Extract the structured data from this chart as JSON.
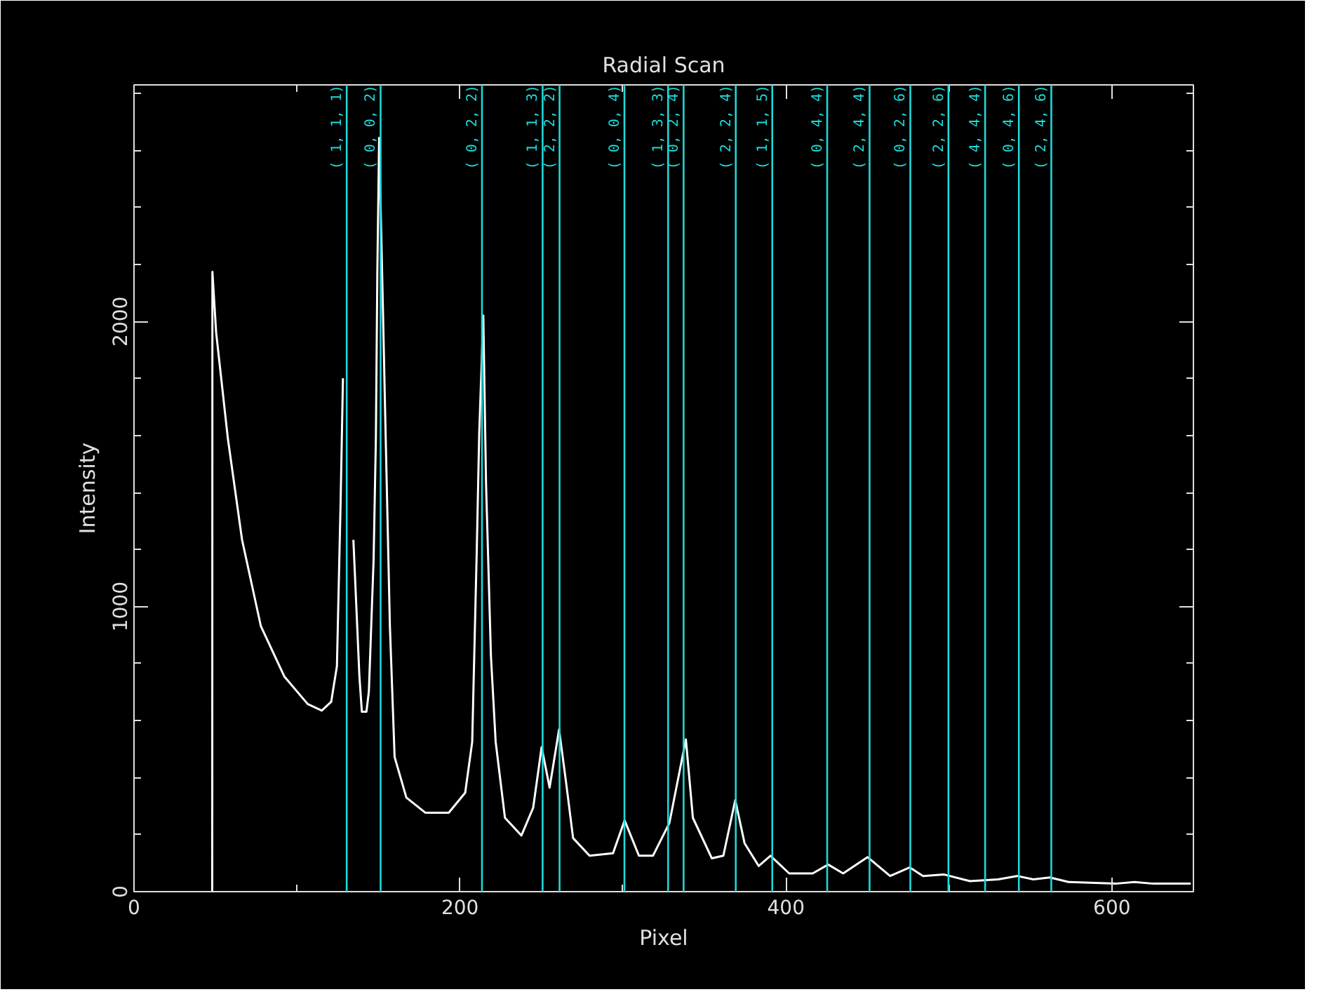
{
  "chart_data": {
    "type": "line",
    "title": "Radial Scan",
    "xlabel": "Pixel",
    "ylabel": "Intensity",
    "xlim": [
      0,
      650
    ],
    "ylim": [
      0,
      2830
    ],
    "xticks": [
      0,
      200,
      400,
      600
    ],
    "yticks": [
      0,
      1000,
      2000
    ],
    "grid": false,
    "marker": "none",
    "line_style": "solid",
    "series": [
      {
        "color": "#ffffff",
        "x": [
          48,
          48.1,
          50.4,
          57.6,
          66.3,
          77.8,
          92.2,
          106.6,
          115.2,
          121,
          124.5,
          126.8,
          128.2,
          129.8,
          132.5,
          134.6,
          138.3,
          139.8,
          142.6,
          144.1,
          147,
          148.4,
          149.3,
          150.4,
          152.7,
          154.1,
          157,
          159.9,
          167.1,
          178.7,
          193.1,
          203.2,
          207.5,
          210.3,
          211.8,
          214.3,
          216,
          219,
          221.9,
          227.6,
          237.7,
          244.9,
          250.1,
          255,
          260.8,
          265.1,
          269.4,
          279.5,
          293.9,
          301,
          309.8,
          318.4,
          328.5,
          338.6,
          342.9,
          354.5,
          361.6,
          368.9,
          374.6,
          383.3,
          390.5,
          402,
          416.4,
          425.9,
          435.1,
          450.1,
          463.9,
          476,
          484.1,
          497.1,
          512.9,
          530.2,
          541.8,
          551.8,
          561.9,
          573.4,
          602.2,
          613.8,
          625.3,
          648.4
        ],
        "values": [
          0,
          2174,
          1961,
          1589,
          1234,
          932,
          755,
          658,
          635,
          666,
          791,
          1376,
          1801,
          null,
          null,
          1234,
          755,
          631,
          631,
          702,
          1163,
          1589,
          2174,
          2644,
          2050,
          1677,
          932,
          472,
          330,
          277,
          277,
          347,
          525,
          1198,
          1606,
          2021,
          1429,
          826,
          525,
          259,
          197,
          294,
          507,
          365,
          569,
          383,
          188,
          126,
          135,
          250,
          126,
          126,
          241,
          534,
          259,
          117,
          126,
          321,
          170,
          90,
          126,
          64,
          64,
          95,
          64,
          121,
          55,
          85,
          55,
          60,
          37,
          43,
          55,
          43,
          50,
          34,
          28,
          34,
          28,
          28
        ]
      }
    ],
    "ref_lines": [
      {
        "axis": "x",
        "value": 130.5,
        "color": "#1fd8d8"
      },
      {
        "axis": "x",
        "value": 151.3,
        "color": "#1fd8d8"
      },
      {
        "axis": "x",
        "value": 213.5,
        "color": "#1fd8d8"
      },
      {
        "axis": "x",
        "value": 250.7,
        "color": "#1fd8d8"
      },
      {
        "axis": "x",
        "value": 261.1,
        "color": "#1fd8d8"
      },
      {
        "axis": "x",
        "value": 300.9,
        "color": "#1fd8d8"
      },
      {
        "axis": "x",
        "value": 327.7,
        "color": "#1fd8d8"
      },
      {
        "axis": "x",
        "value": 337.2,
        "color": "#1fd8d8"
      },
      {
        "axis": "x",
        "value": 369.2,
        "color": "#1fd8d8"
      },
      {
        "axis": "x",
        "value": 391.6,
        "color": "#1fd8d8"
      },
      {
        "axis": "x",
        "value": 425.3,
        "color": "#1fd8d8"
      },
      {
        "axis": "x",
        "value": 451.3,
        "color": "#1fd8d8"
      },
      {
        "axis": "x",
        "value": 476.3,
        "color": "#1fd8d8"
      },
      {
        "axis": "x",
        "value": 499.7,
        "color": "#1fd8d8"
      },
      {
        "axis": "x",
        "value": 522.2,
        "color": "#1fd8d8"
      },
      {
        "axis": "x",
        "value": 542.9,
        "color": "#1fd8d8"
      },
      {
        "axis": "x",
        "value": 562.8,
        "color": "#1fd8d8"
      }
    ],
    "annotations": [
      {
        "text": "( 1, 1, 1)",
        "x": 130.5,
        "y": 2830
      },
      {
        "text": "( 0, 0, 2)",
        "x": 151.3,
        "y": 2830
      },
      {
        "text": "( 0, 2, 2)",
        "x": 213.5,
        "y": 2830
      },
      {
        "text": "( 1, 1, 3)",
        "x": 250.7,
        "y": 2830
      },
      {
        "text": "( 2, 2, 2)",
        "x": 261.1,
        "y": 2830
      },
      {
        "text": "( 0, 0, 4)",
        "x": 300.9,
        "y": 2830
      },
      {
        "text": "( 1, 3, 3)",
        "x": 327.7,
        "y": 2830
      },
      {
        "text": "( 0, 2, 4)",
        "x": 337.2,
        "y": 2830
      },
      {
        "text": "( 2, 2, 4)",
        "x": 369.2,
        "y": 2830
      },
      {
        "text": "( 1, 1, 5)",
        "x": 391.6,
        "y": 2830
      },
      {
        "text": "( 0, 4, 4)",
        "x": 425.3,
        "y": 2830
      },
      {
        "text": "( 2, 4, 4)",
        "x": 451.3,
        "y": 2830
      },
      {
        "text": "( 0, 2, 6)",
        "x": 476.3,
        "y": 2830
      },
      {
        "text": "( 2, 2, 6)",
        "x": 499.7,
        "y": 2830
      },
      {
        "text": "( 4, 4, 4)",
        "x": 522.2,
        "y": 2830
      },
      {
        "text": "( 0, 4, 6)",
        "x": 542.9,
        "y": 2830
      },
      {
        "text": "( 2, 4, 6)",
        "x": 562.8,
        "y": 2830
      }
    ]
  }
}
